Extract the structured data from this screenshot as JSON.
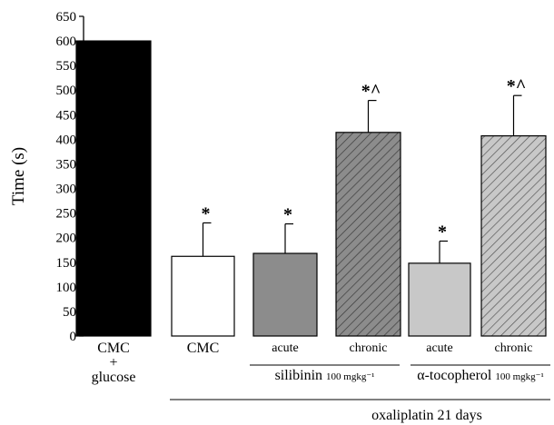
{
  "chart_data": {
    "type": "bar",
    "ylabel": "Time (s)",
    "ylim": [
      0,
      650
    ],
    "yticks": [
      0,
      50,
      100,
      150,
      200,
      250,
      300,
      350,
      400,
      450,
      500,
      550,
      600,
      650
    ],
    "grid": false,
    "bars": [
      {
        "label": "CMC\n+\nglucose",
        "value": 600,
        "error": 0,
        "significance": "",
        "fill": "#000000",
        "pattern": "solid"
      },
      {
        "label": "CMC",
        "value": 162,
        "error": 68,
        "significance": "*",
        "fill": "#ffffff",
        "pattern": "solid"
      },
      {
        "label": "acute",
        "value": 168,
        "error": 60,
        "significance": "*",
        "fill": "#8c8c8c",
        "pattern": "solid"
      },
      {
        "label": "chronic",
        "value": 414,
        "error": 65,
        "significance": "*^",
        "fill": "#8c8c8c",
        "pattern": "hatch"
      },
      {
        "label": "acute",
        "value": 148,
        "error": 45,
        "significance": "*",
        "fill": "#c8c8c8",
        "pattern": "solid"
      },
      {
        "label": "chronic",
        "value": 407,
        "error": 82,
        "significance": "*^",
        "fill": "#c8c8c8",
        "pattern": "hatch"
      }
    ],
    "groups": [
      {
        "name": "silibinin",
        "unit": "100 mgkg⁻¹",
        "bars": [
          2,
          3
        ]
      },
      {
        "name": "α-tocopherol",
        "unit": "100 mgkg⁻¹",
        "bars": [
          4,
          5
        ]
      }
    ],
    "supergroup": {
      "name": "oxaliplatin 21 days",
      "bars": [
        1,
        2,
        3,
        4,
        5
      ]
    }
  }
}
